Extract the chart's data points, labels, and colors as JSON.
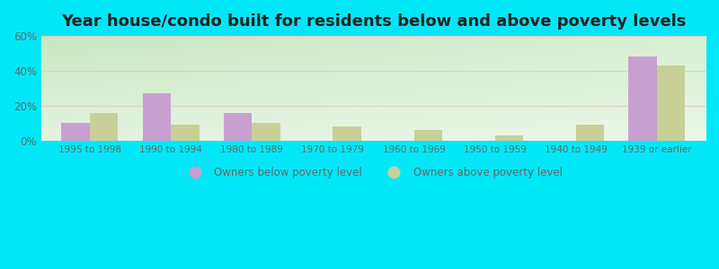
{
  "title": "Year house/condo built for residents below and above poverty levels",
  "categories": [
    "1995 to 1998",
    "1990 to 1994",
    "1980 to 1989",
    "1970 to 1979",
    "1960 to 1969",
    "1950 to 1959",
    "1940 to 1949",
    "1939 or earlier"
  ],
  "below_poverty": [
    10,
    27,
    16,
    0,
    0,
    0,
    0,
    48
  ],
  "above_poverty": [
    16,
    9,
    10,
    8,
    6,
    3,
    9,
    43
  ],
  "below_color": "#c8a0d0",
  "above_color": "#c8d098",
  "ylim": [
    0,
    60
  ],
  "yticks": [
    0,
    20,
    40,
    60
  ],
  "ytick_labels": [
    "0%",
    "20%",
    "40%",
    "60%"
  ],
  "grad_top": "#c8e8c0",
  "grad_bottom": "#f0faf0",
  "outer_bg": "#00e8f8",
  "legend_below": "Owners below poverty level",
  "legend_above": "Owners above poverty level",
  "bar_width": 0.35,
  "title_fontsize": 13
}
